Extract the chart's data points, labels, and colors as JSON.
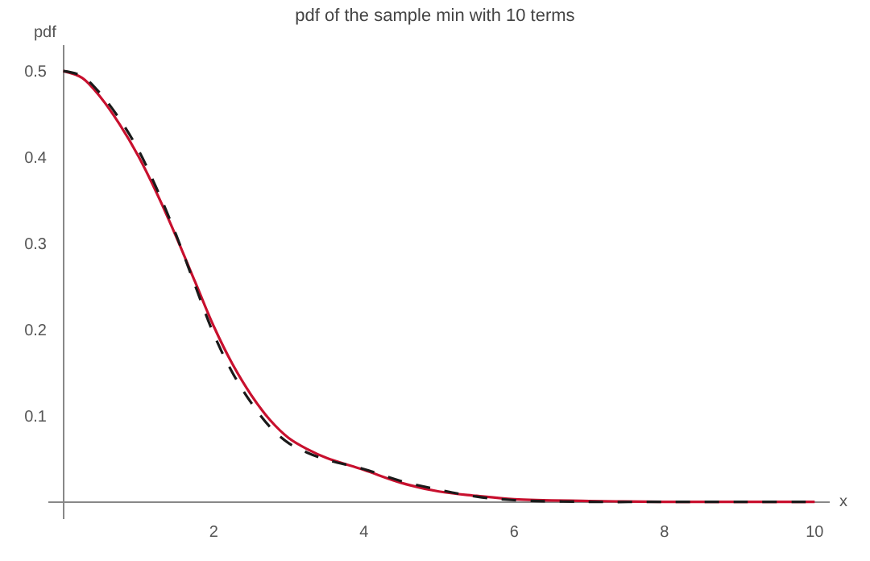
{
  "chart_data": {
    "type": "line",
    "title": "pdf of the sample min with 10 terms",
    "xlabel": "x",
    "ylabel": "pdf",
    "x": [
      0,
      0.25,
      0.5,
      0.75,
      1,
      1.25,
      1.5,
      1.75,
      2,
      2.25,
      2.5,
      2.75,
      3,
      3.25,
      3.5,
      4,
      4.5,
      5,
      5.5,
      6,
      7,
      8,
      9,
      10
    ],
    "series": [
      {
        "color": "#c8102e",
        "line_style": "solid",
        "values": [
          0.5,
          0.492,
          0.469,
          0.438,
          0.401,
          0.357,
          0.308,
          0.256,
          0.204,
          0.16,
          0.124,
          0.095,
          0.074,
          0.061,
          0.051,
          0.037,
          0.022,
          0.012,
          0.007,
          0.003,
          0.001,
          0,
          0,
          0
        ]
      },
      {
        "color": "#1a1a1a",
        "line_style": "dashed",
        "values": [
          0.5,
          0.494,
          0.473,
          0.444,
          0.408,
          0.362,
          0.31,
          0.252,
          0.195,
          0.15,
          0.115,
          0.087,
          0.068,
          0.057,
          0.049,
          0.038,
          0.024,
          0.014,
          0.006,
          0.002,
          0,
          0,
          0,
          0
        ]
      }
    ],
    "xlim": [
      -0.2,
      10.2
    ],
    "ylim": [
      -0.02,
      0.53
    ],
    "xticks": [
      2,
      4,
      6,
      8,
      10
    ],
    "yticks": [
      0.1,
      0.2,
      0.3,
      0.4,
      0.5
    ],
    "marker": "none"
  }
}
